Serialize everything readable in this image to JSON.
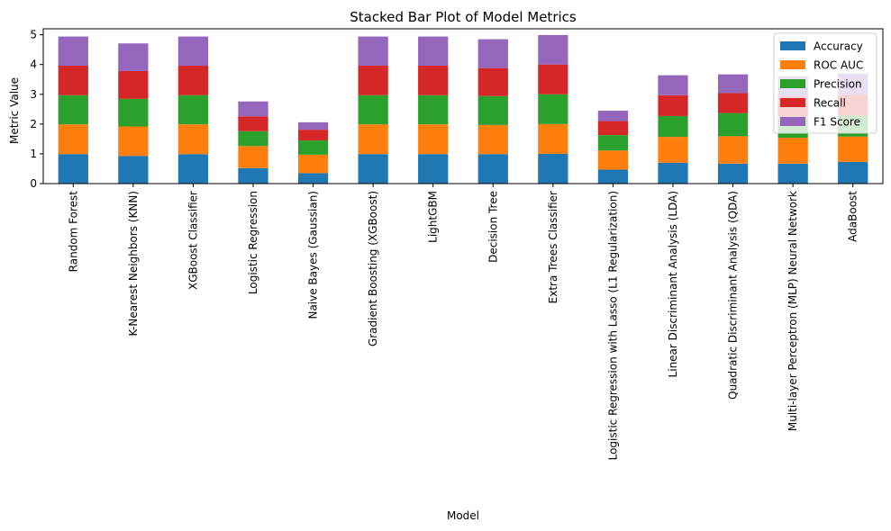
{
  "chart_data": {
    "type": "bar",
    "stacked": true,
    "title": "Stacked Bar Plot of Model Metrics",
    "xlabel": "Model",
    "ylabel": "Metric Value",
    "ylim": [
      0,
      5.2
    ],
    "yticks": [
      0,
      1,
      2,
      3,
      4,
      5
    ],
    "grid": false,
    "legend_position": "upper right",
    "categories": [
      "Random Forest",
      "K-Nearest Neighbors (KNN)",
      "XGBoost Classifier",
      "Logistic Regression",
      "Naive Bayes (Gaussian)",
      "Gradient Boosting (XGBoost)",
      "LightGBM",
      "Decision Tree",
      "Extra Trees Classifier",
      "Logistic Regression with Lasso (L1 Regularization)",
      "Linear Discriminant Analysis (LDA)",
      "Quadratic Discriminant Analysis (QDA)",
      "Multi-layer Perceptron (MLP) Neural Network",
      "AdaBoost"
    ],
    "series": [
      {
        "name": "Accuracy",
        "color": "#1f77b4",
        "values": [
          0.99,
          0.93,
          0.99,
          0.52,
          0.35,
          0.99,
          0.99,
          0.99,
          1.0,
          0.47,
          0.7,
          0.67,
          0.67,
          0.73
        ]
      },
      {
        "name": "ROC AUC",
        "color": "#ff7f0e",
        "values": [
          1.0,
          0.99,
          1.0,
          0.74,
          0.62,
          1.0,
          1.0,
          0.98,
          1.0,
          0.64,
          0.87,
          0.92,
          0.87,
          0.85
        ]
      },
      {
        "name": "Precision",
        "color": "#2ca02c",
        "values": [
          0.98,
          0.93,
          0.98,
          0.5,
          0.48,
          0.98,
          0.98,
          0.97,
          1.0,
          0.52,
          0.7,
          0.78,
          0.7,
          0.7
        ]
      },
      {
        "name": "Recall",
        "color": "#d62728",
        "values": [
          0.99,
          0.93,
          0.99,
          0.5,
          0.36,
          0.99,
          0.99,
          0.94,
          1.0,
          0.47,
          0.7,
          0.67,
          0.7,
          0.7
        ]
      },
      {
        "name": "F1 Score",
        "color": "#9467bd",
        "values": [
          0.98,
          0.93,
          0.98,
          0.5,
          0.25,
          0.98,
          0.98,
          0.97,
          0.99,
          0.35,
          0.67,
          0.63,
          0.66,
          0.72
        ]
      }
    ]
  }
}
